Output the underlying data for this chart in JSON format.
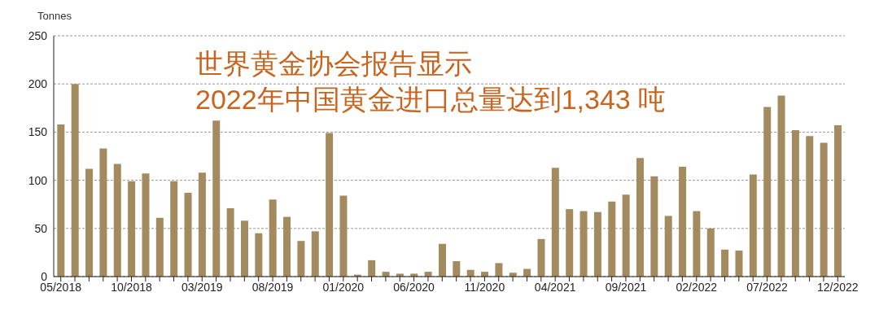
{
  "chart_data": {
    "type": "bar",
    "title": "世界黄金协会报告显示\n2022年中国黄金进口总量达到1,343 吨",
    "ylabel": "Tonnes",
    "categories": [
      "05/2018",
      null,
      null,
      null,
      null,
      "10/2018",
      null,
      null,
      null,
      null,
      "03/2019",
      null,
      null,
      null,
      null,
      "08/2019",
      null,
      null,
      null,
      null,
      "01/2020",
      null,
      null,
      null,
      null,
      "06/2020",
      null,
      null,
      null,
      null,
      "11/2020",
      null,
      null,
      null,
      null,
      "04/2021",
      null,
      null,
      null,
      null,
      "09/2021",
      null,
      null,
      null,
      null,
      "02/2022",
      null,
      null,
      null,
      null,
      "07/2022",
      null,
      null,
      null,
      null,
      "12/2022"
    ],
    "values": [
      158,
      200,
      112,
      133,
      117,
      99,
      107,
      61,
      99,
      87,
      108,
      162,
      71,
      58,
      45,
      80,
      62,
      37,
      47,
      149,
      84,
      2,
      17,
      5,
      3,
      3,
      5,
      34,
      16,
      7,
      5,
      14,
      4,
      8,
      39,
      113,
      70,
      68,
      67,
      78,
      85,
      123,
      104,
      63,
      114,
      68,
      50,
      28,
      27,
      106,
      176,
      188,
      152,
      146,
      139,
      157
    ],
    "color": "#a38b5f",
    "ylim": [
      0,
      250
    ],
    "yticks": [
      0,
      50,
      100,
      150,
      200,
      250
    ],
    "grid": "y"
  }
}
